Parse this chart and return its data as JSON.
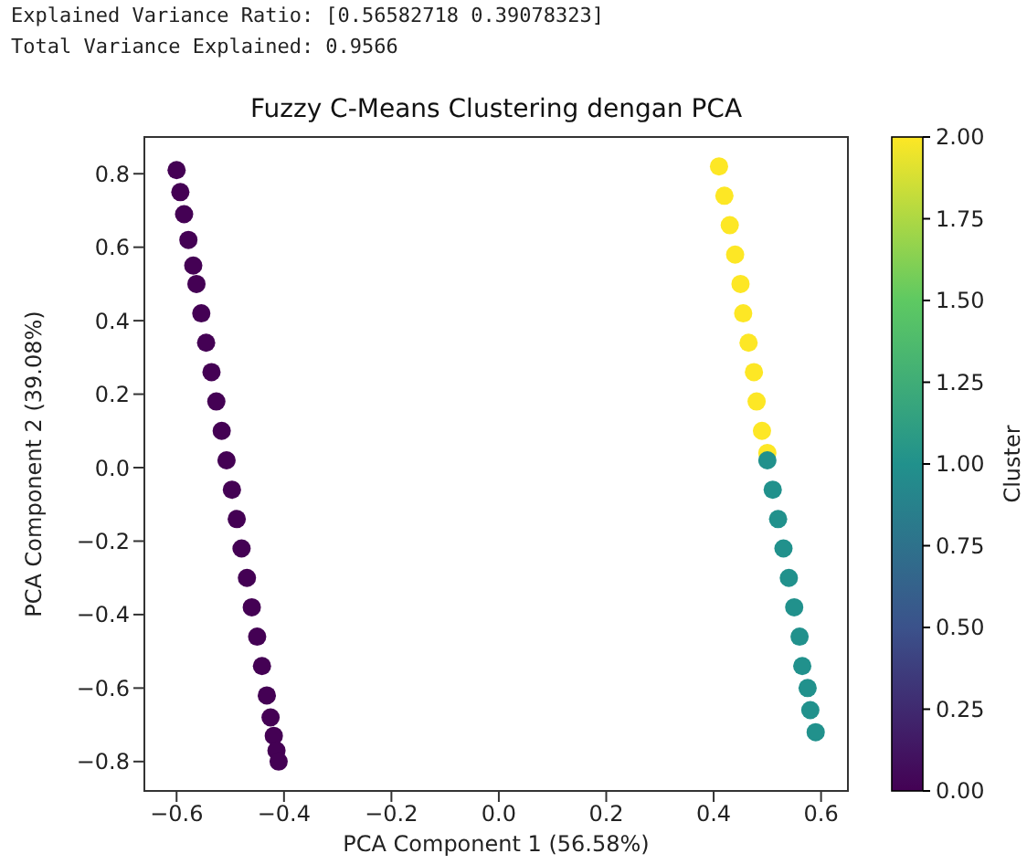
{
  "chart_data": {
    "type": "scatter",
    "title": "Fuzzy C-Means Clustering dengan PCA",
    "xlabel": "PCA Component 1 (56.58%)",
    "ylabel": "PCA Component 2 (39.08%)",
    "clabel": "Cluster",
    "annotations": [
      "Explained Variance Ratio: [0.56582718 0.39078323]",
      "Total Variance Explained: 0.9566"
    ],
    "marker": "circle",
    "x": [
      -0.6,
      -0.593,
      -0.586,
      -0.578,
      -0.569,
      -0.563,
      -0.554,
      -0.545,
      -0.535,
      -0.526,
      -0.516,
      -0.507,
      -0.497,
      -0.488,
      -0.479,
      -0.469,
      -0.46,
      -0.45,
      -0.441,
      -0.432,
      -0.425,
      -0.419,
      -0.414,
      -0.41,
      0.41,
      0.42,
      0.43,
      0.44,
      0.45,
      0.455,
      0.465,
      0.475,
      0.48,
      0.49,
      0.5,
      0.5,
      0.51,
      0.52,
      0.53,
      0.54,
      0.55,
      0.56,
      0.565,
      0.575,
      0.58,
      0.59
    ],
    "values": [
      0.81,
      0.75,
      0.69,
      0.62,
      0.55,
      0.5,
      0.42,
      0.34,
      0.26,
      0.18,
      0.1,
      0.02,
      -0.06,
      -0.14,
      -0.22,
      -0.3,
      -0.38,
      -0.46,
      -0.54,
      -0.62,
      -0.68,
      -0.73,
      -0.77,
      -0.8,
      0.82,
      0.74,
      0.66,
      0.58,
      0.5,
      0.42,
      0.34,
      0.26,
      0.18,
      0.1,
      0.04,
      0.02,
      -0.06,
      -0.14,
      -0.22,
      -0.3,
      -0.38,
      -0.46,
      -0.54,
      -0.6,
      -0.66,
      -0.72
    ],
    "cvalues": [
      0,
      0,
      0,
      0,
      0,
      0,
      0,
      0,
      0,
      0,
      0,
      0,
      0,
      0,
      0,
      0,
      0,
      0,
      0,
      0,
      0,
      0,
      0,
      0,
      2,
      2,
      2,
      2,
      2,
      2,
      2,
      2,
      2,
      2,
      2,
      1,
      1,
      1,
      1,
      1,
      1,
      1,
      1,
      1,
      1,
      1
    ],
    "xlim": [
      -0.66,
      0.65
    ],
    "ylim": [
      -0.88,
      0.9
    ],
    "xticks": [
      {
        "value": -0.6,
        "label": "−0.6"
      },
      {
        "value": -0.4,
        "label": "−0.4"
      },
      {
        "value": -0.2,
        "label": "−0.2"
      },
      {
        "value": 0,
        "label": "0.0"
      },
      0.2,
      0.4,
      0.6
    ],
    "yticks": [
      {
        "value": -0.8,
        "label": "−0.8"
      },
      {
        "value": -0.6,
        "label": "−0.6"
      },
      {
        "value": -0.4,
        "label": "−0.4"
      },
      {
        "value": -0.2,
        "label": "−0.2"
      },
      {
        "value": 0,
        "label": "0.0"
      },
      0.2,
      0.4,
      0.6,
      0.8
    ],
    "clim": [
      0,
      2
    ],
    "cticks": [
      {
        "value": 0,
        "label": "0.00"
      },
      0.25,
      {
        "value": 0.5,
        "label": "0.50"
      },
      0.75,
      {
        "value": 1,
        "label": "1.00"
      },
      1.25,
      {
        "value": 1.5,
        "label": "1.50"
      },
      1.75,
      {
        "value": 2,
        "label": "2.00"
      }
    ]
  }
}
